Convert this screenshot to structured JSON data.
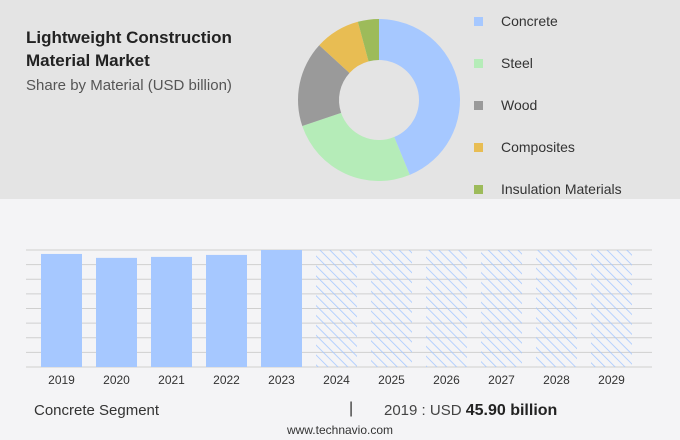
{
  "colors": {
    "Concrete": "#a6c8ff",
    "Steel": "#b5ecb8",
    "Wood": "#9a9a9a",
    "Composites": "#e8bd53",
    "Insulation Materials": "#9dbb5a",
    "bar": "#a6c8ff",
    "grid": "#cfcfcf"
  },
  "chart_data": [
    {
      "type": "pie",
      "donut": true,
      "title": "Lightweight Construction Material Market",
      "subtitle": "Share by Material (USD billion)",
      "labels": [
        "Concrete",
        "Steel",
        "Wood",
        "Composites",
        "Insulation Materials"
      ],
      "values": [
        43.8,
        26,
        17,
        9,
        4.2
      ],
      "legend_position": "right"
    },
    {
      "type": "bar",
      "categories": [
        "2019",
        "2020",
        "2021",
        "2022",
        "2023",
        "2024",
        "2025",
        "2026",
        "2027",
        "2028",
        "2029"
      ],
      "values": [
        45.9,
        44.3,
        44.7,
        45.5,
        47.5,
        null,
        null,
        null,
        null,
        null,
        null
      ],
      "forecast_hatched": [
        "2024",
        "2025",
        "2026",
        "2027",
        "2028",
        "2029"
      ],
      "ylim": [
        0,
        47.5
      ],
      "grid": true
    }
  ],
  "footer": {
    "segment": "Concrete Segment",
    "separator": "|",
    "year_label": "2019 : USD",
    "value": "45.90 billion",
    "site": "www.technavio.com"
  }
}
